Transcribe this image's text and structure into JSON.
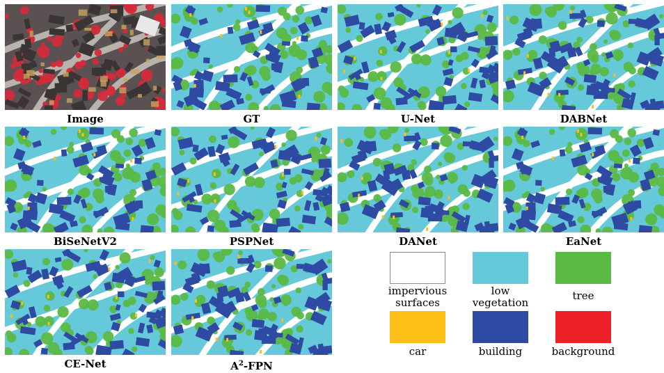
{
  "figure": {
    "panels": [
      {
        "id": "image",
        "caption": "Image",
        "kind": "image"
      },
      {
        "id": "gt",
        "caption": "GT",
        "kind": "map"
      },
      {
        "id": "unet",
        "caption": "U-Net",
        "kind": "map"
      },
      {
        "id": "dabnet",
        "caption": "DABNet",
        "kind": "map"
      },
      {
        "id": "bisenetv2",
        "caption": "BiSeNetV2",
        "kind": "map"
      },
      {
        "id": "pspnet",
        "caption": "PSPNet",
        "kind": "map"
      },
      {
        "id": "danet",
        "caption": "DANet",
        "kind": "map"
      },
      {
        "id": "eanet",
        "caption": "EaNet",
        "kind": "map"
      },
      {
        "id": "cenet",
        "caption": "CE-Net",
        "kind": "map"
      },
      {
        "id": "a2fpn",
        "caption_main": "A",
        "caption_sup": "2",
        "caption_rest": "-FPN",
        "kind": "map"
      }
    ],
    "legend": [
      {
        "label_line1": "impervious",
        "label_line2": "surfaces",
        "color": "#ffffff",
        "border": "#8a8a8a"
      },
      {
        "label_line1": "low",
        "label_line2": "vegetation",
        "color": "#66c9d9",
        "border": "#66c9d9"
      },
      {
        "label_line1": "tree",
        "label_line2": "",
        "color": "#5ab944",
        "border": "#5ab944"
      },
      {
        "label_line1": "car",
        "label_line2": "",
        "color": "#fbbf17",
        "border": "#fbbf17"
      },
      {
        "label_line1": "building",
        "label_line2": "",
        "color": "#2f4aa3",
        "border": "#2f4aa3"
      },
      {
        "label_line1": "background",
        "label_line2": "",
        "color": "#ec2027",
        "border": "#ec2027"
      }
    ]
  }
}
